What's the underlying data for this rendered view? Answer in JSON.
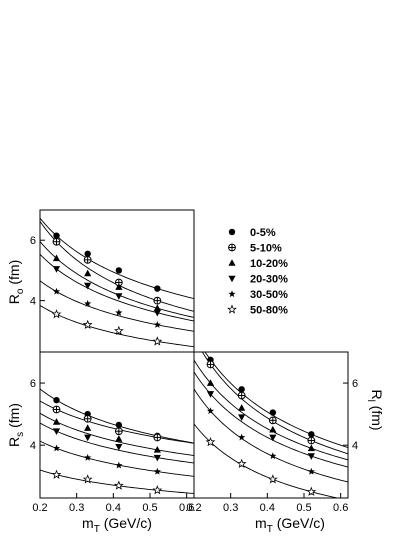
{
  "chart_data": [
    {
      "type": "scatter",
      "panel": "Ro",
      "ylabel_main": "R",
      "ylabel_sub": "o",
      "ylabel_unit": " (fm)",
      "xlabel": "",
      "xlim": [
        0.2,
        0.62
      ],
      "ylim": [
        2.3,
        7.0
      ],
      "yticks": [
        4,
        6
      ],
      "xticks": [],
      "series": [
        {
          "name": "0-5%",
          "marker": "circle-filled",
          "x": [
            0.245,
            0.33,
            0.415,
            0.52
          ],
          "y": [
            6.15,
            5.55,
            5.0,
            4.4
          ]
        },
        {
          "name": "5-10%",
          "marker": "cross-open",
          "x": [
            0.245,
            0.33,
            0.415,
            0.52
          ],
          "y": [
            5.95,
            5.35,
            4.6,
            4.0
          ]
        },
        {
          "name": "10-20%",
          "marker": "triangle-up",
          "x": [
            0.245,
            0.33,
            0.415,
            0.52
          ],
          "y": [
            5.4,
            4.9,
            4.45,
            3.75
          ]
        },
        {
          "name": "20-30%",
          "marker": "triangle-down",
          "x": [
            0.245,
            0.33,
            0.415,
            0.52
          ],
          "y": [
            5.05,
            4.5,
            4.15,
            3.6
          ]
        },
        {
          "name": "30-50%",
          "marker": "star-filled",
          "x": [
            0.245,
            0.33,
            0.415,
            0.52
          ],
          "y": [
            4.3,
            3.9,
            3.6,
            3.2
          ]
        },
        {
          "name": "50-80%",
          "marker": "star-open",
          "x": [
            0.245,
            0.33,
            0.415,
            0.52
          ],
          "y": [
            3.55,
            3.2,
            3.0,
            2.65
          ]
        }
      ]
    },
    {
      "type": "scatter",
      "panel": "Rs",
      "ylabel_main": "R",
      "ylabel_sub": "s",
      "ylabel_unit": " (fm)",
      "xlabel_main": "m",
      "xlabel_sub": "T",
      "xlabel_unit": " (GeV/c)",
      "xlim": [
        0.2,
        0.62
      ],
      "ylim": [
        2.3,
        7.0
      ],
      "yticks": [
        4,
        6
      ],
      "xticks": [
        0.2,
        0.3,
        0.4,
        0.5,
        0.6
      ],
      "xtick_labels": [
        "0.2",
        "0.3",
        "0.4",
        "0.5",
        "0.6"
      ],
      "series": [
        {
          "name": "0-5%",
          "marker": "circle-filled",
          "x": [
            0.245,
            0.33,
            0.415,
            0.52
          ],
          "y": [
            5.45,
            5.0,
            4.65,
            4.3
          ]
        },
        {
          "name": "5-10%",
          "marker": "cross-open",
          "x": [
            0.245,
            0.33,
            0.415,
            0.52
          ],
          "y": [
            5.15,
            4.85,
            4.45,
            4.25
          ]
        },
        {
          "name": "10-20%",
          "marker": "triangle-up",
          "x": [
            0.245,
            0.33,
            0.415,
            0.52
          ],
          "y": [
            4.75,
            4.55,
            4.2,
            3.85
          ]
        },
        {
          "name": "20-30%",
          "marker": "triangle-down",
          "x": [
            0.245,
            0.33,
            0.415,
            0.52
          ],
          "y": [
            4.45,
            4.25,
            3.95,
            3.6
          ]
        },
        {
          "name": "30-50%",
          "marker": "star-filled",
          "x": [
            0.245,
            0.33,
            0.415,
            0.52
          ],
          "y": [
            3.9,
            3.6,
            3.35,
            3.15
          ]
        },
        {
          "name": "50-80%",
          "marker": "star-open",
          "x": [
            0.245,
            0.33,
            0.415,
            0.52
          ],
          "y": [
            3.05,
            2.9,
            2.7,
            2.55
          ]
        }
      ]
    },
    {
      "type": "scatter",
      "panel": "Rl",
      "ylabel_main": "R",
      "ylabel_sub": "l",
      "ylabel_unit": " (fm)",
      "xlabel_main": "m",
      "xlabel_sub": "T",
      "xlabel_unit": " (GeV/c)",
      "xlim": [
        0.2,
        0.62
      ],
      "ylim": [
        2.3,
        7.0
      ],
      "yticks": [
        4,
        6
      ],
      "xticks": [
        0.2,
        0.3,
        0.4,
        0.5,
        0.6
      ],
      "xtick_labels": [
        "0.2",
        "0.3",
        "0.4",
        "0.5",
        "0.6"
      ],
      "series": [
        {
          "name": "0-5%",
          "marker": "circle-filled",
          "x": [
            0.245,
            0.33,
            0.415,
            0.52
          ],
          "y": [
            6.75,
            5.8,
            5.05,
            4.35
          ]
        },
        {
          "name": "5-10%",
          "marker": "cross-open",
          "x": [
            0.245,
            0.33,
            0.415,
            0.52
          ],
          "y": [
            6.6,
            5.6,
            4.8,
            4.15
          ]
        },
        {
          "name": "10-20%",
          "marker": "triangle-up",
          "x": [
            0.245,
            0.33,
            0.415,
            0.52
          ],
          "y": [
            6.0,
            5.2,
            4.5,
            3.9
          ]
        },
        {
          "name": "20-30%",
          "marker": "triangle-down",
          "x": [
            0.245,
            0.33,
            0.415,
            0.52
          ],
          "y": [
            5.65,
            4.9,
            4.25,
            3.65
          ]
        },
        {
          "name": "30-50%",
          "marker": "star-filled",
          "x": [
            0.245,
            0.33,
            0.415,
            0.52
          ],
          "y": [
            5.1,
            4.25,
            3.65,
            3.15
          ]
        },
        {
          "name": "50-80%",
          "marker": "star-open",
          "x": [
            0.245,
            0.33,
            0.415,
            0.52
          ],
          "y": [
            4.1,
            3.4,
            2.9,
            2.5
          ]
        }
      ]
    }
  ],
  "legend": {
    "placement": "right of top panel",
    "entries": [
      "0-5%",
      "5-10%",
      "10-20%",
      "20-30%",
      "30-50%",
      "50-80%"
    ]
  },
  "colors": {
    "ink": "#000000",
    "background": "#ffffff"
  }
}
